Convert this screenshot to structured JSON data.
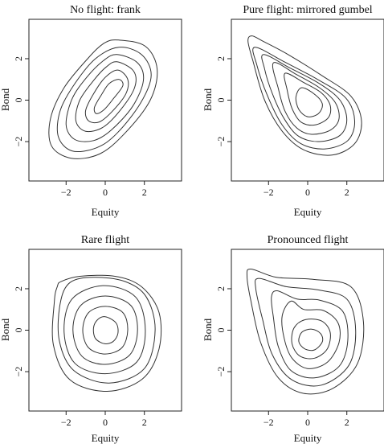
{
  "chart_data": [
    {
      "type": "contour",
      "title": "No flight: frank",
      "xlabel": "Equity",
      "ylabel": "Bond",
      "xlim": [
        -3.9,
        3.9
      ],
      "ylim": [
        -3.9,
        3.9
      ],
      "xticks": [
        -2,
        0,
        2
      ],
      "yticks": [
        -2,
        0,
        2
      ],
      "xtick_labels": [
        "−2",
        "0",
        "2"
      ],
      "ytick_labels": [
        "−2",
        "0",
        "2"
      ],
      "contours": [
        [
          [
            0.7,
            1.0
          ],
          [
            0.9,
            0.7
          ],
          [
            0.4,
            0.05
          ],
          [
            -0.05,
            -0.45
          ],
          [
            -0.45,
            -0.65
          ],
          [
            -0.55,
            -0.35
          ],
          [
            -0.2,
            0.25
          ],
          [
            0.2,
            0.8
          ]
        ],
        [
          [
            0.65,
            1.45
          ],
          [
            1.15,
            1.0
          ],
          [
            1.05,
            0.3
          ],
          [
            0.35,
            -0.55
          ],
          [
            -0.3,
            -1.05
          ],
          [
            -0.85,
            -1.0
          ],
          [
            -1.0,
            -0.5
          ],
          [
            -0.6,
            0.3
          ],
          [
            0.0,
            1.1
          ]
        ],
        [
          [
            0.6,
            1.85
          ],
          [
            1.45,
            1.4
          ],
          [
            1.5,
            0.6
          ],
          [
            0.8,
            -0.45
          ],
          [
            -0.1,
            -1.3
          ],
          [
            -1.0,
            -1.5
          ],
          [
            -1.5,
            -1.0
          ],
          [
            -1.3,
            0.0
          ],
          [
            -0.55,
            1.0
          ],
          [
            0.05,
            1.6
          ]
        ],
        [
          [
            0.6,
            2.2
          ],
          [
            1.65,
            1.8
          ],
          [
            1.95,
            0.95
          ],
          [
            1.4,
            -0.3
          ],
          [
            0.3,
            -1.45
          ],
          [
            -0.6,
            -1.95
          ],
          [
            -1.55,
            -1.9
          ],
          [
            -2.0,
            -1.2
          ],
          [
            -1.7,
            0.05
          ],
          [
            -0.95,
            1.1
          ],
          [
            -0.1,
            1.9
          ]
        ],
        [
          [
            0.7,
            2.55
          ],
          [
            1.85,
            2.2
          ],
          [
            2.35,
            1.2
          ],
          [
            1.8,
            -0.15
          ],
          [
            0.6,
            -1.6
          ],
          [
            -0.45,
            -2.3
          ],
          [
            -1.7,
            -2.45
          ],
          [
            -2.4,
            -1.75
          ],
          [
            -2.3,
            -0.5
          ],
          [
            -1.55,
            0.8
          ],
          [
            -0.5,
            2.0
          ]
        ],
        [
          [
            0.7,
            2.9
          ],
          [
            2.05,
            2.6
          ],
          [
            2.65,
            1.5
          ],
          [
            2.3,
            0.0
          ],
          [
            1.0,
            -1.6
          ],
          [
            -0.3,
            -2.6
          ],
          [
            -1.75,
            -2.8
          ],
          [
            -2.75,
            -2.2
          ],
          [
            -2.8,
            -0.9
          ],
          [
            -2.1,
            0.6
          ],
          [
            -0.9,
            2.0
          ],
          [
            -0.05,
            2.75
          ]
        ]
      ]
    },
    {
      "type": "contour",
      "title": "Pure flight: mirrored gumbel",
      "xlabel": "Equity",
      "ylabel": "Bond",
      "xlim": [
        -3.9,
        3.9
      ],
      "ylim": [
        -3.9,
        3.9
      ],
      "xticks": [
        -2,
        0,
        2
      ],
      "yticks": [
        -2,
        0,
        2
      ],
      "xtick_labels": [
        "−2",
        "0",
        "2"
      ],
      "ytick_labels": [
        "−2",
        "0",
        "2"
      ],
      "contours": [
        [
          [
            -0.3,
            0.6
          ],
          [
            0.4,
            0.25
          ],
          [
            0.75,
            -0.2
          ],
          [
            0.55,
            -0.65
          ],
          [
            0.0,
            -0.8
          ],
          [
            -0.45,
            -0.45
          ],
          [
            -0.6,
            0.15
          ]
        ],
        [
          [
            -1.15,
            1.3
          ],
          [
            -0.2,
            0.85
          ],
          [
            0.7,
            0.35
          ],
          [
            1.15,
            -0.25
          ],
          [
            1.05,
            -0.85
          ],
          [
            0.35,
            -1.2
          ],
          [
            -0.35,
            -1.05
          ],
          [
            -0.8,
            -0.4
          ],
          [
            -1.05,
            0.5
          ]
        ],
        [
          [
            -1.75,
            1.8
          ],
          [
            -0.6,
            1.25
          ],
          [
            0.6,
            0.6
          ],
          [
            1.4,
            -0.1
          ],
          [
            1.6,
            -0.9
          ],
          [
            1.15,
            -1.45
          ],
          [
            0.2,
            -1.65
          ],
          [
            -0.55,
            -1.35
          ],
          [
            -1.15,
            -0.55
          ],
          [
            -1.5,
            0.55
          ]
        ],
        [
          [
            -2.25,
            2.2
          ],
          [
            -0.9,
            1.55
          ],
          [
            0.6,
            0.8
          ],
          [
            1.65,
            0.0
          ],
          [
            2.0,
            -0.95
          ],
          [
            1.65,
            -1.7
          ],
          [
            0.6,
            -2.0
          ],
          [
            -0.45,
            -1.75
          ],
          [
            -1.2,
            -0.9
          ],
          [
            -1.8,
            0.3
          ],
          [
            -2.2,
            1.5
          ]
        ],
        [
          [
            -2.7,
            2.55
          ],
          [
            -1.2,
            1.85
          ],
          [
            0.5,
            1.0
          ],
          [
            1.95,
            0.1
          ],
          [
            2.4,
            -1.0
          ],
          [
            2.05,
            -1.95
          ],
          [
            0.9,
            -2.35
          ],
          [
            -0.35,
            -2.1
          ],
          [
            -1.3,
            -1.2
          ],
          [
            -2.05,
            0.2
          ],
          [
            -2.6,
            1.7
          ]
        ],
        [
          [
            -2.85,
            3.1
          ],
          [
            -2.3,
            2.85
          ],
          [
            -1.0,
            2.2
          ],
          [
            0.7,
            1.2
          ],
          [
            2.2,
            0.2
          ],
          [
            2.75,
            -1.0
          ],
          [
            2.4,
            -2.1
          ],
          [
            1.25,
            -2.65
          ],
          [
            -0.2,
            -2.4
          ],
          [
            -1.3,
            -1.5
          ],
          [
            -2.2,
            0.0
          ],
          [
            -2.8,
            1.9
          ],
          [
            -3.05,
            2.85
          ]
        ]
      ]
    },
    {
      "type": "contour",
      "title": "Rare flight",
      "xlabel": "Equity",
      "ylabel": "Bond",
      "xlim": [
        -3.9,
        3.9
      ],
      "ylim": [
        -3.9,
        3.9
      ],
      "xticks": [
        -2,
        0,
        2
      ],
      "yticks": [
        -2,
        0,
        2
      ],
      "xtick_labels": [
        "−2",
        "0",
        "2"
      ],
      "ytick_labels": [
        "−2",
        "0",
        "2"
      ],
      "contours": [
        [
          [
            0.0,
            0.65
          ],
          [
            0.55,
            0.35
          ],
          [
            0.65,
            -0.15
          ],
          [
            0.4,
            -0.55
          ],
          [
            -0.05,
            -0.65
          ],
          [
            -0.5,
            -0.4
          ],
          [
            -0.6,
            0.1
          ],
          [
            -0.4,
            0.5
          ]
        ],
        [
          [
            0.0,
            1.15
          ],
          [
            0.9,
            0.85
          ],
          [
            1.15,
            0.0
          ],
          [
            0.85,
            -0.85
          ],
          [
            0.0,
            -1.15
          ],
          [
            -0.85,
            -0.85
          ],
          [
            -1.15,
            0.0
          ],
          [
            -0.85,
            0.85
          ]
        ],
        [
          [
            0.0,
            1.65
          ],
          [
            1.3,
            1.2
          ],
          [
            1.65,
            0.0
          ],
          [
            1.25,
            -1.2
          ],
          [
            0.0,
            -1.65
          ],
          [
            -1.2,
            -1.25
          ],
          [
            -1.65,
            0.0
          ],
          [
            -1.25,
            1.2
          ]
        ],
        [
          [
            -0.1,
            2.15
          ],
          [
            1.55,
            1.6
          ],
          [
            2.05,
            0.0
          ],
          [
            1.6,
            -1.55
          ],
          [
            0.0,
            -2.1
          ],
          [
            -1.55,
            -1.6
          ],
          [
            -2.1,
            -0.1
          ],
          [
            -1.7,
            1.5
          ]
        ],
        [
          [
            -0.6,
            2.55
          ],
          [
            1.0,
            2.35
          ],
          [
            2.1,
            1.6
          ],
          [
            2.55,
            0.0
          ],
          [
            2.0,
            -1.85
          ],
          [
            0.2,
            -2.55
          ],
          [
            -1.6,
            -1.95
          ],
          [
            -2.35,
            -0.5
          ],
          [
            -2.3,
            1.3
          ],
          [
            -1.8,
            2.3
          ]
        ],
        [
          [
            -2.25,
            2.35
          ],
          [
            -1.3,
            2.6
          ],
          [
            0.5,
            2.6
          ],
          [
            1.85,
            2.1
          ],
          [
            2.75,
            0.85
          ],
          [
            2.75,
            -0.9
          ],
          [
            1.9,
            -2.35
          ],
          [
            0.1,
            -2.95
          ],
          [
            -1.8,
            -2.4
          ],
          [
            -2.65,
            -0.7
          ],
          [
            -2.6,
            1.4
          ],
          [
            -2.45,
            2.1
          ]
        ]
      ]
    },
    {
      "type": "contour",
      "title": "Pronounced flight",
      "xlabel": "Equity",
      "ylabel": "Bond",
      "xlim": [
        -3.9,
        3.9
      ],
      "ylim": [
        -3.9,
        3.9
      ],
      "xticks": [
        -2,
        0,
        2
      ],
      "yticks": [
        -2,
        0,
        2
      ],
      "xtick_labels": [
        "−2",
        "0",
        "2"
      ],
      "ytick_labels": [
        "−2",
        "0",
        "2"
      ],
      "contours": [
        [
          [
            0.2,
            0.05
          ],
          [
            0.65,
            -0.15
          ],
          [
            0.75,
            -0.55
          ],
          [
            0.35,
            -0.95
          ],
          [
            -0.15,
            -0.9
          ],
          [
            -0.45,
            -0.55
          ],
          [
            -0.3,
            -0.1
          ]
        ],
        [
          [
            -0.15,
            0.5
          ],
          [
            0.7,
            0.45
          ],
          [
            1.15,
            -0.1
          ],
          [
            1.0,
            -0.9
          ],
          [
            0.35,
            -1.35
          ],
          [
            -0.4,
            -1.25
          ],
          [
            -0.8,
            -0.65
          ],
          [
            -0.7,
            0.1
          ]
        ],
        [
          [
            -0.85,
            1.4
          ],
          [
            -0.2,
            1.0
          ],
          [
            0.8,
            0.95
          ],
          [
            1.55,
            0.35
          ],
          [
            1.6,
            -0.6
          ],
          [
            1.0,
            -1.55
          ],
          [
            0.0,
            -1.85
          ],
          [
            -0.8,
            -1.35
          ],
          [
            -1.2,
            -0.4
          ],
          [
            -1.3,
            0.7
          ]
        ],
        [
          [
            -1.55,
            1.9
          ],
          [
            -0.55,
            1.5
          ],
          [
            0.6,
            1.45
          ],
          [
            1.8,
            0.9
          ],
          [
            2.05,
            -0.5
          ],
          [
            1.6,
            -1.75
          ],
          [
            0.35,
            -2.3
          ],
          [
            -0.85,
            -1.95
          ],
          [
            -1.5,
            -0.8
          ],
          [
            -1.75,
            0.6
          ],
          [
            -1.85,
            1.6
          ]
        ],
        [
          [
            -2.5,
            2.5
          ],
          [
            -1.1,
            2.1
          ],
          [
            0.5,
            1.95
          ],
          [
            2.0,
            1.5
          ],
          [
            2.45,
            0.0
          ],
          [
            2.1,
            -1.7
          ],
          [
            0.7,
            -2.65
          ],
          [
            -0.8,
            -2.4
          ],
          [
            -1.8,
            -1.2
          ],
          [
            -2.3,
            0.5
          ],
          [
            -2.65,
            2.0
          ]
        ],
        [
          [
            -2.9,
            2.95
          ],
          [
            -1.6,
            2.55
          ],
          [
            0.3,
            2.45
          ],
          [
            2.2,
            2.1
          ],
          [
            2.85,
            0.4
          ],
          [
            2.55,
            -1.6
          ],
          [
            1.3,
            -2.8
          ],
          [
            -0.2,
            -3.05
          ],
          [
            -1.5,
            -2.3
          ],
          [
            -2.4,
            -0.6
          ],
          [
            -2.9,
            1.4
          ],
          [
            -3.1,
            2.6
          ]
        ]
      ]
    }
  ]
}
